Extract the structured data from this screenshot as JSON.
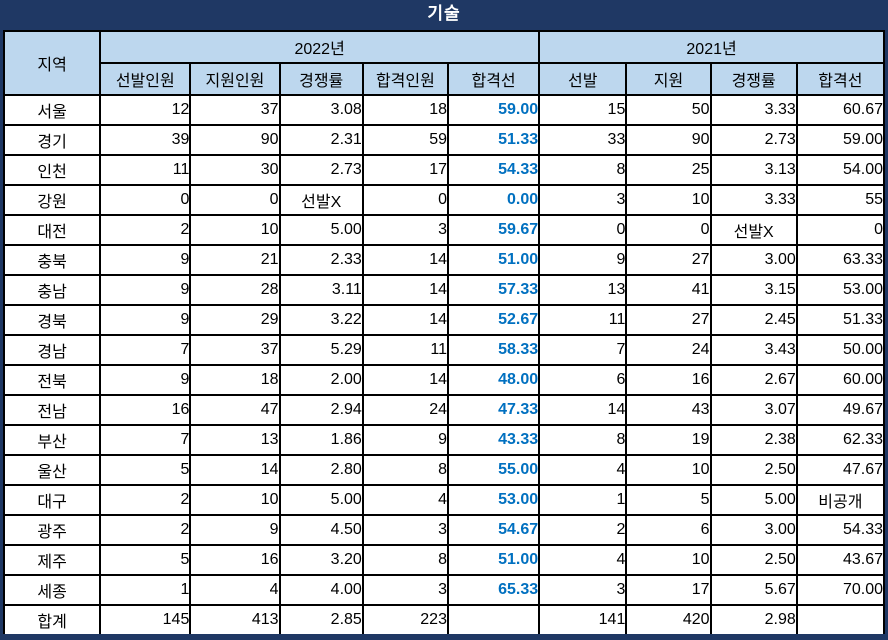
{
  "colors": {
    "navy": "#1F3864",
    "header_bg": "#BDD7EE",
    "highlight": "#0070C0",
    "grid": "#000000"
  },
  "chart_data": {
    "type": "table",
    "title": "기술",
    "column_groups": [
      {
        "label": "지역",
        "colspan": 1
      },
      {
        "label": "2022년",
        "colspan": 5
      },
      {
        "label": "2021년",
        "colspan": 4
      }
    ],
    "columns": [
      "지역",
      "선발인원",
      "지원인원",
      "경쟁률",
      "합격인원",
      "합격선",
      "선발",
      "지원",
      "경쟁률",
      "합격선"
    ],
    "highlight_column_index": 5,
    "rows": [
      [
        "서울",
        "12",
        "37",
        "3.08",
        "18",
        "59.00",
        "15",
        "50",
        "3.33",
        "60.67"
      ],
      [
        "경기",
        "39",
        "90",
        "2.31",
        "59",
        "51.33",
        "33",
        "90",
        "2.73",
        "59.00"
      ],
      [
        "인천",
        "11",
        "30",
        "2.73",
        "17",
        "54.33",
        "8",
        "25",
        "3.13",
        "54.00"
      ],
      [
        "강원",
        "0",
        "0",
        "선발X",
        "0",
        "0.00",
        "3",
        "10",
        "3.33",
        "55"
      ],
      [
        "대전",
        "2",
        "10",
        "5.00",
        "3",
        "59.67",
        "0",
        "0",
        "선발X",
        "0"
      ],
      [
        "충북",
        "9",
        "21",
        "2.33",
        "14",
        "51.00",
        "9",
        "27",
        "3.00",
        "63.33"
      ],
      [
        "충남",
        "9",
        "28",
        "3.11",
        "14",
        "57.33",
        "13",
        "41",
        "3.15",
        "53.00"
      ],
      [
        "경북",
        "9",
        "29",
        "3.22",
        "14",
        "52.67",
        "11",
        "27",
        "2.45",
        "51.33"
      ],
      [
        "경남",
        "7",
        "37",
        "5.29",
        "11",
        "58.33",
        "7",
        "24",
        "3.43",
        "50.00"
      ],
      [
        "전북",
        "9",
        "18",
        "2.00",
        "14",
        "48.00",
        "6",
        "16",
        "2.67",
        "60.00"
      ],
      [
        "전남",
        "16",
        "47",
        "2.94",
        "24",
        "47.33",
        "14",
        "43",
        "3.07",
        "49.67"
      ],
      [
        "부산",
        "7",
        "13",
        "1.86",
        "9",
        "43.33",
        "8",
        "19",
        "2.38",
        "62.33"
      ],
      [
        "울산",
        "5",
        "14",
        "2.80",
        "8",
        "55.00",
        "4",
        "10",
        "2.50",
        "47.67"
      ],
      [
        "대구",
        "2",
        "10",
        "5.00",
        "4",
        "53.00",
        "1",
        "5",
        "5.00",
        "비공개"
      ],
      [
        "광주",
        "2",
        "9",
        "4.50",
        "3",
        "54.67",
        "2",
        "6",
        "3.00",
        "54.33"
      ],
      [
        "제주",
        "5",
        "16",
        "3.20",
        "8",
        "51.00",
        "4",
        "10",
        "2.50",
        "43.67"
      ],
      [
        "세종",
        "1",
        "4",
        "4.00",
        "3",
        "65.33",
        "3",
        "17",
        "5.67",
        "70.00"
      ],
      [
        "합계",
        "145",
        "413",
        "2.85",
        "223",
        "",
        "141",
        "420",
        "2.98",
        ""
      ]
    ]
  }
}
